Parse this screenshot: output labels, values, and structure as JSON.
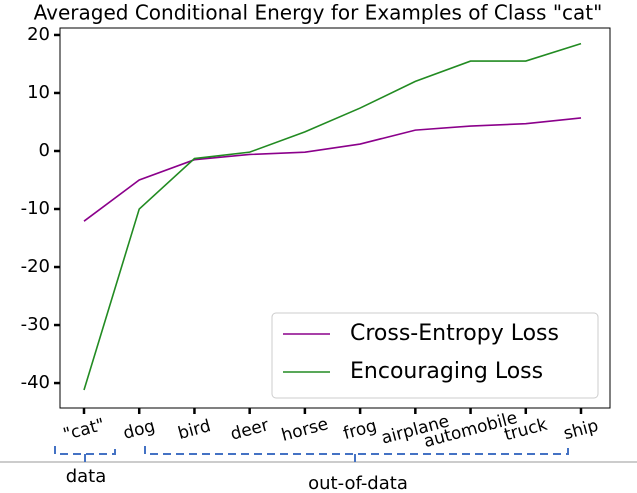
{
  "chart_data": {
    "type": "line",
    "title": "Averaged Conditional Energy for Examples of Class \"cat\"",
    "categories": [
      "\"cat\"",
      "dog",
      "bird",
      "deer",
      "horse",
      "frog",
      "airplane",
      "automobile",
      "truck",
      "ship"
    ],
    "series": [
      {
        "name": "Cross-Entropy Loss",
        "color": "#8b008b",
        "values": [
          -12.1,
          -5,
          -1.5,
          -0.6,
          -0.2,
          1.2,
          3.6,
          4.3,
          4.7,
          5.7
        ]
      },
      {
        "name": "Encouraging Loss",
        "color": "#228b22",
        "values": [
          -41.2,
          -10,
          -1.3,
          -0.2,
          3.3,
          7.4,
          12,
          15.5,
          15.5,
          18.5
        ]
      }
    ],
    "ylim": [
      -44.3,
      21.2
    ],
    "yticks": [
      -40,
      -30,
      -20,
      -10,
      0,
      10,
      20
    ],
    "legend": "lower right",
    "annotations": [
      "data",
      "out-of-data"
    ]
  }
}
